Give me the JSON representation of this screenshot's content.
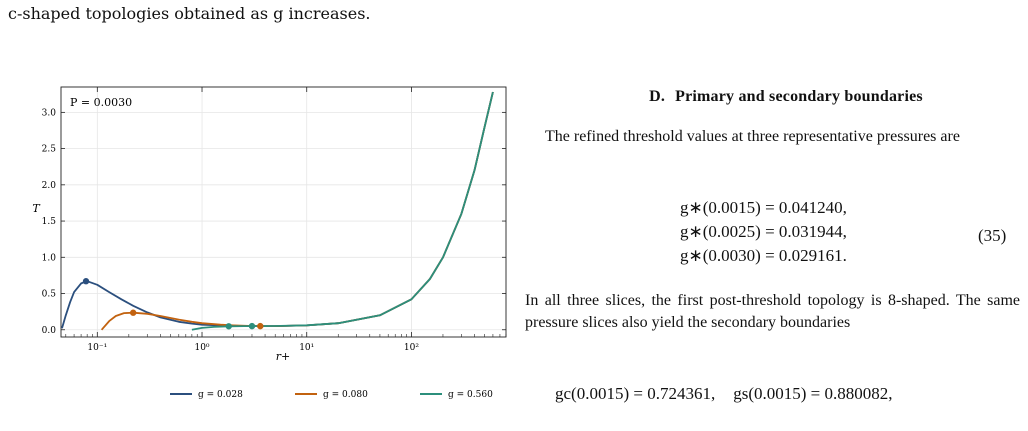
{
  "text": {
    "top_line": "c-shaped topologies obtained as g increases.",
    "top_right_fragment": "",
    "section_number": "D.",
    "section_title": "Primary and secondary boundaries",
    "para1": "The refined threshold values at three representative pressures are",
    "equations": [
      "g∗(0.0015) = 0.041240,",
      "g∗(0.0025) = 0.031944,",
      "g∗(0.0030) = 0.029161."
    ],
    "equation_number": "(35)",
    "para2": "In all three slices, the first post-threshold topology is 8-shaped. The same pressure slices also yield the secondary boundaries",
    "bottom_eq_left": "gc(0.0015) = 0.724361,",
    "bottom_eq_right": "gs(0.0015) = 0.880082,"
  },
  "chart_data": {
    "type": "line",
    "annotation": "P = 0.0030",
    "xlabel": "r+",
    "ylabel": "T",
    "xscale": "log",
    "xlim": [
      0.045,
      800
    ],
    "ylim": [
      -0.1,
      3.35
    ],
    "x_ticks": [
      0.1,
      1,
      10,
      100
    ],
    "x_tick_labels": [
      "10⁻¹",
      "10⁰",
      "10¹",
      "10²"
    ],
    "y_ticks": [
      0.0,
      0.5,
      1.0,
      1.5,
      2.0,
      2.5,
      3.0
    ],
    "y_tick_labels": [
      "0.0",
      "0.5",
      "1.0",
      "1.5",
      "2.0",
      "2.5",
      "3.0"
    ],
    "grid": true,
    "legend_position": "bottom",
    "series": [
      {
        "name": "g = 0.028",
        "color": "#2b4f7e",
        "x": [
          0.046,
          0.05,
          0.055,
          0.06,
          0.07,
          0.08,
          0.1,
          0.13,
          0.17,
          0.22,
          0.3,
          0.4,
          0.6,
          0.8,
          1.0,
          1.5,
          2.0,
          3.0,
          5.0,
          10,
          20,
          50,
          100,
          150,
          200,
          300,
          400,
          500,
          600
        ],
        "y": [
          0.02,
          0.2,
          0.38,
          0.52,
          0.64,
          0.67,
          0.62,
          0.52,
          0.42,
          0.33,
          0.24,
          0.17,
          0.11,
          0.085,
          0.07,
          0.06,
          0.055,
          0.05,
          0.05,
          0.06,
          0.09,
          0.2,
          0.42,
          0.7,
          1.0,
          1.6,
          2.2,
          2.8,
          3.28
        ],
        "markers": [
          {
            "x": 0.078,
            "y": 0.67
          }
        ]
      },
      {
        "name": "g = 0.080",
        "color": "#c2620f",
        "x": [
          0.11,
          0.13,
          0.15,
          0.18,
          0.22,
          0.3,
          0.4,
          0.6,
          0.8,
          1.0,
          1.5,
          2.0,
          3.0,
          3.6,
          5.0,
          10,
          20,
          50,
          100,
          150,
          200,
          300,
          400,
          500,
          600
        ],
        "y": [
          0.0,
          0.12,
          0.19,
          0.23,
          0.235,
          0.22,
          0.19,
          0.14,
          0.11,
          0.09,
          0.07,
          0.06,
          0.052,
          0.05,
          0.051,
          0.06,
          0.09,
          0.2,
          0.42,
          0.7,
          1.0,
          1.6,
          2.2,
          2.8,
          3.28
        ],
        "markers": [
          {
            "x": 0.22,
            "y": 0.235
          },
          {
            "x": 3.6,
            "y": 0.05
          }
        ]
      },
      {
        "name": "g = 0.560",
        "color": "#2c8f7c",
        "x": [
          0.8,
          1.0,
          1.3,
          1.8,
          2.5,
          3.0,
          5.0,
          10,
          20,
          50,
          100,
          150,
          200,
          300,
          400,
          500,
          600
        ],
        "y": [
          0.0,
          0.025,
          0.04,
          0.048,
          0.05,
          0.05,
          0.052,
          0.062,
          0.09,
          0.2,
          0.42,
          0.7,
          1.0,
          1.6,
          2.2,
          2.8,
          3.28
        ],
        "markers": [
          {
            "x": 1.8,
            "y": 0.048
          },
          {
            "x": 3.0,
            "y": 0.05
          }
        ]
      }
    ]
  }
}
